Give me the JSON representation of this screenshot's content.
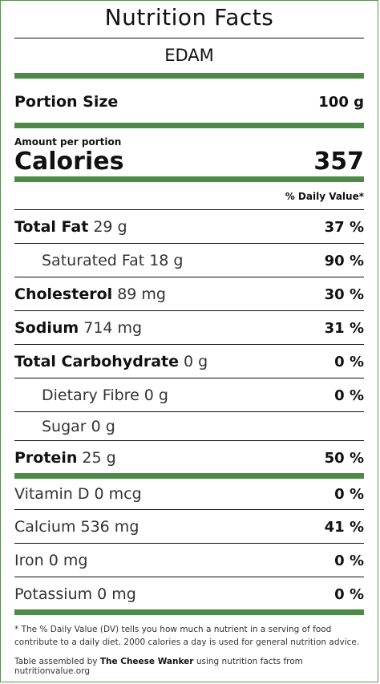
{
  "title": "Nutrition Facts",
  "food": "EDAM",
  "portion": {
    "label": "Portion Size",
    "value": "100 g"
  },
  "amount_per_portion": "Amount per portion",
  "calories": {
    "label": "Calories",
    "value": "357"
  },
  "daily_value_header": "% Daily Value*",
  "nutrients": [
    {
      "name": "Total Fat",
      "amount": "29 g",
      "dv": "37 %"
    },
    {
      "name": "Saturated Fat 18 g",
      "amount": "",
      "dv": "90 %"
    },
    {
      "name": "Cholesterol",
      "amount": "89 mg",
      "dv": "30 %"
    },
    {
      "name": "Sodium",
      "amount": "714 mg",
      "dv": "31 %"
    },
    {
      "name": "Total Carbohydrate",
      "amount": "0 g",
      "dv": "0 %"
    },
    {
      "name": "Dietary Fibre 0 g",
      "amount": "",
      "dv": "0 %"
    },
    {
      "name": "Sugar 0 g",
      "amount": "",
      "dv": ""
    },
    {
      "name": "Protein",
      "amount": "25 g",
      "dv": "50 %"
    }
  ],
  "vitamins": [
    {
      "name": "Vitamin D 0 mcg",
      "dv": "0 %"
    },
    {
      "name": "Calcium 536 mg",
      "dv": "41 %"
    },
    {
      "name": "Iron 0 mg",
      "dv": "0 %"
    },
    {
      "name": "Potassium 0 mg",
      "dv": "0 %"
    }
  ],
  "footnote": "* The % Daily Value (DV) tells you how much a nutrient in a serving of food contribute to a daily diet. 2000 calories a day is used for general nutrition advice.",
  "credit": {
    "prefix": "Table assembled by",
    "author": "The Cheese Wanker",
    "suffix": "using nutrition facts from nutritionvalue.org"
  },
  "colors": {
    "accent_green": "#4d8a45",
    "border_green": "#5a8f55"
  }
}
